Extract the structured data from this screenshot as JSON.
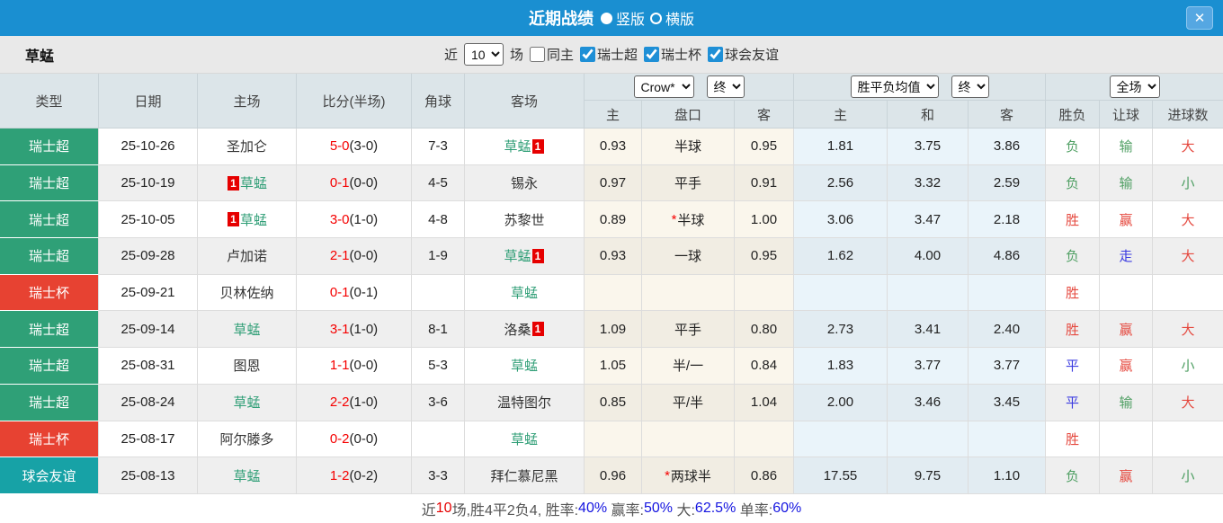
{
  "topbar": {
    "title": "近期战绩",
    "vertical": "竖版",
    "horizontal": "横版",
    "v_state": "sel",
    "h_state": "",
    "close": "✕"
  },
  "filter": {
    "team": "草蜢",
    "near_label": "近",
    "games_value": "10",
    "games_unit": "场",
    "checkboxes": [
      {
        "label": "同主",
        "checked": false
      },
      {
        "label": "瑞士超",
        "checked": true
      },
      {
        "label": "瑞士杯",
        "checked": true
      },
      {
        "label": "球会友谊",
        "checked": true
      }
    ]
  },
  "header": {
    "cols": [
      "类型",
      "日期",
      "主场",
      "比分(半场)",
      "角球",
      "客场"
    ],
    "book": "Crow*",
    "state1": "终",
    "avg": "胜平负均值",
    "state2": "终",
    "scope": "全场",
    "sub": [
      "主",
      "盘口",
      "客",
      "主",
      "和",
      "客",
      "胜负",
      "让球",
      "进球数"
    ]
  },
  "table": {
    "rows": [
      {
        "type": {
          "t": "瑞士超",
          "cls": "t-green"
        },
        "date": "25-10-26",
        "home": {
          "pre": "",
          "name": "圣加仑",
          "post": "",
          "cls": ""
        },
        "score": {
          "ft": "5-0",
          "ht": "(3-0)"
        },
        "corner": "7-3",
        "away": {
          "pre": "",
          "name": "草蜢",
          "post": "1",
          "cls": "green"
        },
        "o1": "0.93",
        "pan": {
          "star": "",
          "t": "半球"
        },
        "o2": "0.95",
        "a1": "1.81",
        "a2": "3.75",
        "a3": "3.86",
        "r1": {
          "t": "负",
          "cls": "r-green"
        },
        "r2": {
          "t": "输",
          "cls": "r-green"
        },
        "r3": {
          "t": "大",
          "cls": "r-red"
        }
      },
      {
        "type": {
          "t": "瑞士超",
          "cls": "t-green"
        },
        "date": "25-10-19",
        "home": {
          "pre": "1",
          "name": "草蜢",
          "post": "",
          "cls": "green"
        },
        "score": {
          "ft": "0-1",
          "ht": "(0-0)"
        },
        "corner": "4-5",
        "away": {
          "pre": "",
          "name": "锡永",
          "post": "",
          "cls": ""
        },
        "o1": "0.97",
        "pan": {
          "star": "",
          "t": "平手"
        },
        "o2": "0.91",
        "a1": "2.56",
        "a2": "3.32",
        "a3": "2.59",
        "r1": {
          "t": "负",
          "cls": "r-green"
        },
        "r2": {
          "t": "输",
          "cls": "r-green"
        },
        "r3": {
          "t": "小",
          "cls": "r-green"
        }
      },
      {
        "type": {
          "t": "瑞士超",
          "cls": "t-green"
        },
        "date": "25-10-05",
        "home": {
          "pre": "1",
          "name": "草蜢",
          "post": "",
          "cls": "green"
        },
        "score": {
          "ft": "3-0",
          "ht": "(1-0)"
        },
        "corner": "4-8",
        "away": {
          "pre": "",
          "name": "苏黎世",
          "post": "",
          "cls": ""
        },
        "o1": "0.89",
        "pan": {
          "star": "*",
          "t": "半球"
        },
        "o2": "1.00",
        "a1": "3.06",
        "a2": "3.47",
        "a3": "2.18",
        "r1": {
          "t": "胜",
          "cls": "r-red"
        },
        "r2": {
          "t": "赢",
          "cls": "r-red"
        },
        "r3": {
          "t": "大",
          "cls": "r-red"
        }
      },
      {
        "type": {
          "t": "瑞士超",
          "cls": "t-green"
        },
        "date": "25-09-28",
        "home": {
          "pre": "",
          "name": "卢加诺",
          "post": "",
          "cls": ""
        },
        "score": {
          "ft": "2-1",
          "ht": "(0-0)"
        },
        "corner": "1-9",
        "away": {
          "pre": "",
          "name": "草蜢",
          "post": "1",
          "cls": "green"
        },
        "o1": "0.93",
        "pan": {
          "star": "",
          "t": "一球"
        },
        "o2": "0.95",
        "a1": "1.62",
        "a2": "4.00",
        "a3": "4.86",
        "r1": {
          "t": "负",
          "cls": "r-green"
        },
        "r2": {
          "t": "走",
          "cls": "r-blue"
        },
        "r3": {
          "t": "大",
          "cls": "r-red"
        }
      },
      {
        "type": {
          "t": "瑞士杯",
          "cls": "t-red"
        },
        "date": "25-09-21",
        "home": {
          "pre": "",
          "name": "贝林佐纳",
          "post": "",
          "cls": ""
        },
        "score": {
          "ft": "0-1",
          "ht": "(0-1)"
        },
        "corner": "",
        "away": {
          "pre": "",
          "name": "草蜢",
          "post": "",
          "cls": "green"
        },
        "o1": "",
        "pan": {
          "star": "",
          "t": ""
        },
        "o2": "",
        "a1": "",
        "a2": "",
        "a3": "",
        "r1": {
          "t": "胜",
          "cls": "r-red"
        },
        "r2": {
          "t": "",
          "cls": ""
        },
        "r3": {
          "t": "",
          "cls": ""
        }
      },
      {
        "type": {
          "t": "瑞士超",
          "cls": "t-green"
        },
        "date": "25-09-14",
        "home": {
          "pre": "",
          "name": "草蜢",
          "post": "",
          "cls": "green"
        },
        "score": {
          "ft": "3-1",
          "ht": "(1-0)"
        },
        "corner": "8-1",
        "away": {
          "pre": "",
          "name": "洛桑",
          "post": "1",
          "cls": ""
        },
        "o1": "1.09",
        "pan": {
          "star": "",
          "t": "平手"
        },
        "o2": "0.80",
        "a1": "2.73",
        "a2": "3.41",
        "a3": "2.40",
        "r1": {
          "t": "胜",
          "cls": "r-red"
        },
        "r2": {
          "t": "赢",
          "cls": "r-red"
        },
        "r3": {
          "t": "大",
          "cls": "r-red"
        }
      },
      {
        "type": {
          "t": "瑞士超",
          "cls": "t-green"
        },
        "date": "25-08-31",
        "home": {
          "pre": "",
          "name": "图恩",
          "post": "",
          "cls": ""
        },
        "score": {
          "ft": "1-1",
          "ht": "(0-0)"
        },
        "corner": "5-3",
        "away": {
          "pre": "",
          "name": "草蜢",
          "post": "",
          "cls": "green"
        },
        "o1": "1.05",
        "pan": {
          "star": "",
          "t": "半/一"
        },
        "o2": "0.84",
        "a1": "1.83",
        "a2": "3.77",
        "a3": "3.77",
        "r1": {
          "t": "平",
          "cls": "r-blue"
        },
        "r2": {
          "t": "赢",
          "cls": "r-red"
        },
        "r3": {
          "t": "小",
          "cls": "r-green"
        }
      },
      {
        "type": {
          "t": "瑞士超",
          "cls": "t-green"
        },
        "date": "25-08-24",
        "home": {
          "pre": "",
          "name": "草蜢",
          "post": "",
          "cls": "green"
        },
        "score": {
          "ft": "2-2",
          "ht": "(1-0)"
        },
        "corner": "3-6",
        "away": {
          "pre": "",
          "name": "温特图尔",
          "post": "",
          "cls": ""
        },
        "o1": "0.85",
        "pan": {
          "star": "",
          "t": "平/半"
        },
        "o2": "1.04",
        "a1": "2.00",
        "a2": "3.46",
        "a3": "3.45",
        "r1": {
          "t": "平",
          "cls": "r-blue"
        },
        "r2": {
          "t": "输",
          "cls": "r-green"
        },
        "r3": {
          "t": "大",
          "cls": "r-red"
        }
      },
      {
        "type": {
          "t": "瑞士杯",
          "cls": "t-red"
        },
        "date": "25-08-17",
        "home": {
          "pre": "",
          "name": "阿尔滕多",
          "post": "",
          "cls": ""
        },
        "score": {
          "ft": "0-2",
          "ht": "(0-0)"
        },
        "corner": "",
        "away": {
          "pre": "",
          "name": "草蜢",
          "post": "",
          "cls": "green"
        },
        "o1": "",
        "pan": {
          "star": "",
          "t": ""
        },
        "o2": "",
        "a1": "",
        "a2": "",
        "a3": "",
        "r1": {
          "t": "胜",
          "cls": "r-red"
        },
        "r2": {
          "t": "",
          "cls": ""
        },
        "r3": {
          "t": "",
          "cls": ""
        }
      },
      {
        "type": {
          "t": "球会友谊",
          "cls": "t-teal"
        },
        "date": "25-08-13",
        "home": {
          "pre": "",
          "name": "草蜢",
          "post": "",
          "cls": "green"
        },
        "score": {
          "ft": "1-2",
          "ht": "(0-2)"
        },
        "corner": "3-3",
        "away": {
          "pre": "",
          "name": "拜仁慕尼黑",
          "post": "",
          "cls": ""
        },
        "o1": "0.96",
        "pan": {
          "star": "*",
          "t": "两球半"
        },
        "o2": "0.86",
        "a1": "17.55",
        "a2": "9.75",
        "a3": "1.10",
        "r1": {
          "t": "负",
          "cls": "r-green"
        },
        "r2": {
          "t": "赢",
          "cls": "r-red"
        },
        "r3": {
          "t": "小",
          "cls": "r-green"
        }
      }
    ]
  },
  "summary": {
    "p0": "近",
    "p1": "10",
    "p2": "场,胜4平2负4, 胜率:",
    "p3": "40%",
    "p4": " 赢率:",
    "p5": "50%",
    "p6": " 大:",
    "p7": "62.5%",
    "p8": " 单率:",
    "p9": "60%"
  },
  "colors": {
    "accent_blue": "#1a8fd1",
    "league_green": "#2fa077",
    "cup_red": "#e74232",
    "friendly_teal": "#17a2a6",
    "win_red": "#e5493f",
    "loss_green": "#4f9f63",
    "draw_blue": "#3c3ce0",
    "score_red": "#f50000",
    "stat_blue": "#1414e0"
  }
}
